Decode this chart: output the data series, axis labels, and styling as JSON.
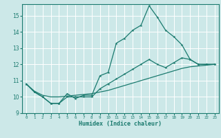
{
  "xlabel": "Humidex (Indice chaleur)",
  "bg_color": "#cce8e8",
  "grid_color": "#ffffff",
  "line_color": "#1a7a6e",
  "xlim": [
    -0.5,
    23.5
  ],
  "ylim": [
    9,
    15.7
  ],
  "yticks": [
    9,
    10,
    11,
    12,
    13,
    14,
    15
  ],
  "xticks": [
    0,
    1,
    2,
    3,
    4,
    5,
    6,
    7,
    8,
    9,
    10,
    11,
    12,
    13,
    14,
    15,
    16,
    17,
    18,
    19,
    20,
    21,
    22,
    23
  ],
  "series1_x": [
    0,
    1,
    2,
    3,
    4,
    5,
    6,
    7,
    8,
    9,
    10,
    11,
    12,
    13,
    14,
    15,
    16,
    17,
    18,
    19,
    20,
    21,
    22,
    23
  ],
  "series1_y": [
    10.8,
    10.3,
    10.0,
    9.6,
    9.6,
    10.2,
    9.9,
    10.1,
    10.1,
    11.3,
    11.5,
    13.3,
    13.6,
    14.1,
    14.4,
    15.6,
    14.9,
    14.1,
    13.7,
    13.2,
    12.3,
    12.0,
    12.0,
    12.0
  ],
  "series2_x": [
    0,
    1,
    2,
    3,
    4,
    5,
    6,
    7,
    8,
    9,
    10,
    11,
    12,
    13,
    14,
    15,
    16,
    17,
    18,
    19,
    20,
    21,
    22,
    23
  ],
  "series2_y": [
    10.8,
    10.3,
    10.0,
    9.6,
    9.6,
    10.0,
    10.0,
    10.0,
    10.0,
    10.5,
    10.8,
    11.1,
    11.4,
    11.7,
    12.0,
    12.3,
    12.0,
    11.8,
    12.1,
    12.4,
    12.3,
    12.0,
    12.0,
    12.0
  ],
  "series3_x": [
    0,
    1,
    2,
    3,
    4,
    5,
    6,
    7,
    8,
    9,
    10,
    11,
    12,
    13,
    14,
    15,
    16,
    17,
    18,
    19,
    20,
    21,
    22,
    23
  ],
  "series3_y": [
    10.8,
    10.35,
    10.1,
    10.0,
    10.0,
    10.05,
    10.1,
    10.15,
    10.2,
    10.3,
    10.4,
    10.55,
    10.7,
    10.85,
    11.0,
    11.15,
    11.3,
    11.45,
    11.6,
    11.75,
    11.85,
    11.9,
    11.95,
    12.0
  ]
}
